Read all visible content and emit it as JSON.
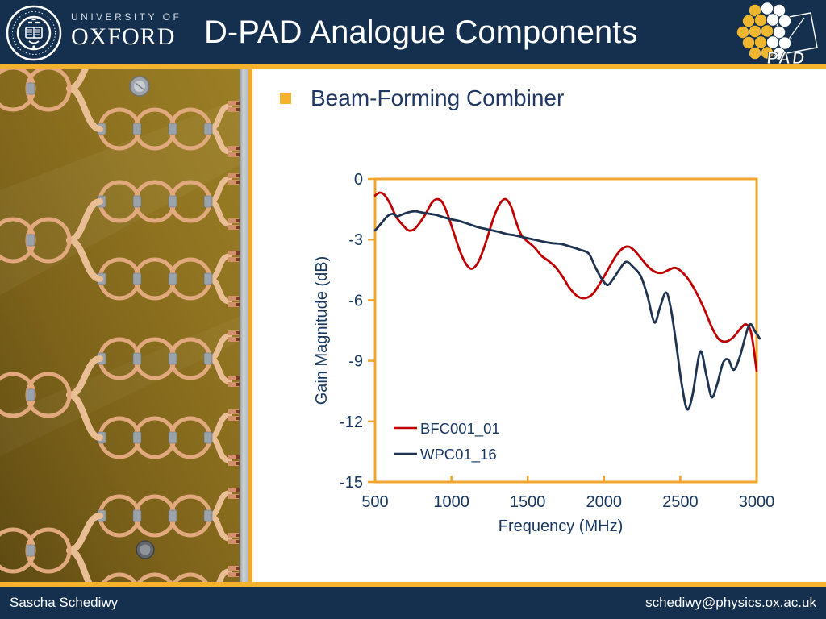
{
  "header": {
    "university_small": "UNIVERSITY OF",
    "university_large": "OXFORD",
    "title": "D-PAD Analogue Components",
    "pad_logo_text": "PAD"
  },
  "slide": {
    "bullet_text": "Beam-Forming Combiner"
  },
  "footer": {
    "author": "Sascha Schediwy",
    "email": "schediwy@physics.ox.ac.uk"
  },
  "colors": {
    "header_navy": "#15304E",
    "accent_gold": "#F5B22C",
    "chart_axis_gold": "#F0A62C",
    "text_navy": "#17365D",
    "series_red": "#C00000",
    "series_navy": "#1F3450"
  },
  "icons": {
    "oxford_crest": "circular belted crest with open book",
    "pad_logo": "cluster of gold and white dots with tilted square outline",
    "bullet": "gold square"
  },
  "chart_data": {
    "type": "line",
    "title": "",
    "xlabel": "Frequency (MHz)",
    "ylabel": "Gain Magnitude (dB)",
    "xlim": [
      500,
      3000
    ],
    "ylim": [
      -15,
      0
    ],
    "x_ticks": [
      500,
      1000,
      1500,
      2000,
      2500,
      3000
    ],
    "y_ticks": [
      0,
      -3,
      -6,
      -9,
      -12,
      -15
    ],
    "grid": false,
    "legend_position": "inside-bottom-left",
    "axis_color": "#F0A62C",
    "series": [
      {
        "name": "BFC001_01",
        "color": "#C00000",
        "points": [
          [
            500,
            -0.82
          ],
          [
            530,
            -0.68
          ],
          [
            560,
            -0.78
          ],
          [
            600,
            -1.25
          ],
          [
            640,
            -1.9
          ],
          [
            690,
            -2.35
          ],
          [
            720,
            -2.55
          ],
          [
            755,
            -2.5
          ],
          [
            790,
            -2.2
          ],
          [
            830,
            -1.75
          ],
          [
            870,
            -1.2
          ],
          [
            905,
            -1.0
          ],
          [
            940,
            -1.15
          ],
          [
            975,
            -1.75
          ],
          [
            1015,
            -2.65
          ],
          [
            1055,
            -3.55
          ],
          [
            1095,
            -4.2
          ],
          [
            1130,
            -4.45
          ],
          [
            1165,
            -4.25
          ],
          [
            1200,
            -3.7
          ],
          [
            1240,
            -2.8
          ],
          [
            1280,
            -1.85
          ],
          [
            1320,
            -1.2
          ],
          [
            1355,
            -1.0
          ],
          [
            1390,
            -1.35
          ],
          [
            1425,
            -2.15
          ],
          [
            1460,
            -2.8
          ],
          [
            1500,
            -3.1
          ],
          [
            1545,
            -3.4
          ],
          [
            1590,
            -3.8
          ],
          [
            1635,
            -4.05
          ],
          [
            1680,
            -4.35
          ],
          [
            1725,
            -4.8
          ],
          [
            1775,
            -5.4
          ],
          [
            1825,
            -5.8
          ],
          [
            1875,
            -5.9
          ],
          [
            1925,
            -5.7
          ],
          [
            1975,
            -5.15
          ],
          [
            2025,
            -4.5
          ],
          [
            2075,
            -3.85
          ],
          [
            2120,
            -3.45
          ],
          [
            2160,
            -3.35
          ],
          [
            2200,
            -3.55
          ],
          [
            2245,
            -3.95
          ],
          [
            2290,
            -4.35
          ],
          [
            2335,
            -4.6
          ],
          [
            2380,
            -4.65
          ],
          [
            2425,
            -4.5
          ],
          [
            2465,
            -4.4
          ],
          [
            2510,
            -4.6
          ],
          [
            2560,
            -5.05
          ],
          [
            2610,
            -5.7
          ],
          [
            2660,
            -6.5
          ],
          [
            2710,
            -7.4
          ],
          [
            2755,
            -7.95
          ],
          [
            2800,
            -8.05
          ],
          [
            2845,
            -7.85
          ],
          [
            2890,
            -7.45
          ],
          [
            2930,
            -7.2
          ],
          [
            2965,
            -7.65
          ],
          [
            3000,
            -9.5
          ]
        ]
      },
      {
        "name": "WPC01_16",
        "color": "#1F3450",
        "points": [
          [
            500,
            -2.55
          ],
          [
            540,
            -2.2
          ],
          [
            580,
            -1.85
          ],
          [
            615,
            -1.73
          ],
          [
            645,
            -1.85
          ],
          [
            680,
            -1.75
          ],
          [
            720,
            -1.65
          ],
          [
            760,
            -1.6
          ],
          [
            800,
            -1.65
          ],
          [
            850,
            -1.72
          ],
          [
            900,
            -1.78
          ],
          [
            950,
            -1.9
          ],
          [
            1000,
            -2.0
          ],
          [
            1060,
            -2.1
          ],
          [
            1120,
            -2.25
          ],
          [
            1180,
            -2.4
          ],
          [
            1240,
            -2.5
          ],
          [
            1300,
            -2.6
          ],
          [
            1360,
            -2.72
          ],
          [
            1420,
            -2.8
          ],
          [
            1480,
            -2.9
          ],
          [
            1540,
            -3.0
          ],
          [
            1600,
            -3.1
          ],
          [
            1660,
            -3.18
          ],
          [
            1720,
            -3.22
          ],
          [
            1780,
            -3.35
          ],
          [
            1840,
            -3.5
          ],
          [
            1900,
            -3.7
          ],
          [
            1945,
            -4.4
          ],
          [
            1990,
            -5.0
          ],
          [
            2025,
            -5.25
          ],
          [
            2060,
            -4.95
          ],
          [
            2100,
            -4.5
          ],
          [
            2145,
            -4.1
          ],
          [
            2190,
            -4.35
          ],
          [
            2240,
            -4.8
          ],
          [
            2285,
            -5.8
          ],
          [
            2330,
            -7.1
          ],
          [
            2365,
            -6.4
          ],
          [
            2405,
            -5.62
          ],
          [
            2435,
            -6.3
          ],
          [
            2470,
            -8.0
          ],
          [
            2510,
            -10.2
          ],
          [
            2545,
            -11.4
          ],
          [
            2580,
            -10.7
          ],
          [
            2630,
            -8.55
          ],
          [
            2670,
            -9.7
          ],
          [
            2705,
            -10.8
          ],
          [
            2740,
            -10.2
          ],
          [
            2780,
            -9.1
          ],
          [
            2815,
            -8.95
          ],
          [
            2850,
            -9.45
          ],
          [
            2890,
            -8.8
          ],
          [
            2950,
            -7.25
          ],
          [
            2990,
            -7.55
          ],
          [
            3020,
            -7.9
          ]
        ]
      }
    ]
  }
}
